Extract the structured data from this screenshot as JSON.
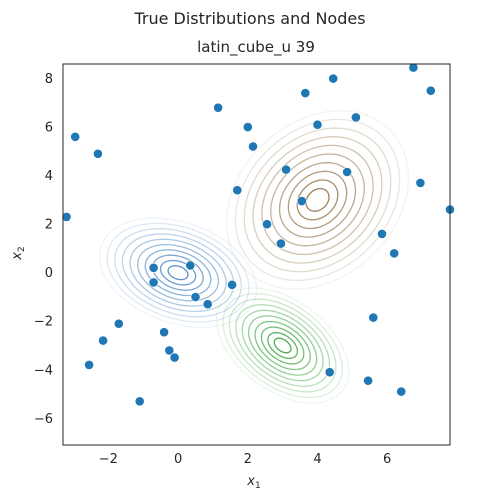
{
  "figure": {
    "suptitle": "True Distributions  and Nodes"
  },
  "chart_data": {
    "type": "scatter",
    "title": "latin_cube_u 39",
    "xlabel": "x",
    "xlabel_sub": "1",
    "ylabel": "x",
    "ylabel_sub": "2",
    "xlim": [
      -3.3,
      7.8
    ],
    "ylim": [
      -7.1,
      8.6
    ],
    "xticks": [
      -2,
      0,
      2,
      4,
      6
    ],
    "yticks": [
      -6,
      -4,
      -2,
      0,
      2,
      4,
      6,
      8
    ],
    "grid": false,
    "point_color": "#1f77b4",
    "nodes": [
      [
        -3.2,
        2.3
      ],
      [
        -2.95,
        5.6
      ],
      [
        -2.55,
        -3.8
      ],
      [
        -2.3,
        4.9
      ],
      [
        -2.15,
        -2.8
      ],
      [
        -1.7,
        -2.1
      ],
      [
        -1.1,
        -5.3
      ],
      [
        -0.7,
        0.2
      ],
      [
        -0.7,
        -0.4
      ],
      [
        -0.4,
        -2.45
      ],
      [
        -0.25,
        -3.2
      ],
      [
        -0.1,
        -3.5
      ],
      [
        0.35,
        0.3
      ],
      [
        0.5,
        -1.0
      ],
      [
        0.85,
        -1.3
      ],
      [
        1.15,
        6.8
      ],
      [
        1.55,
        -0.5
      ],
      [
        1.7,
        3.4
      ],
      [
        2.0,
        6.0
      ],
      [
        2.15,
        5.2
      ],
      [
        2.55,
        2.0
      ],
      [
        2.95,
        1.2
      ],
      [
        3.1,
        4.25
      ],
      [
        3.55,
        2.95
      ],
      [
        3.65,
        7.4
      ],
      [
        4.0,
        6.1
      ],
      [
        4.45,
        8.0
      ],
      [
        4.35,
        -4.1
      ],
      [
        4.85,
        4.15
      ],
      [
        5.1,
        6.4
      ],
      [
        5.45,
        -4.45
      ],
      [
        5.6,
        -1.85
      ],
      [
        5.85,
        1.6
      ],
      [
        6.2,
        0.8
      ],
      [
        6.4,
        -4.9
      ],
      [
        6.75,
        8.45
      ],
      [
        6.95,
        3.7
      ],
      [
        7.25,
        7.5
      ],
      [
        7.8,
        2.6
      ]
    ],
    "distributions": [
      {
        "mean": [
          0.0,
          0.0
        ],
        "sx": 0.95,
        "sy": 0.95,
        "rho": -0.3,
        "color": "#3f7fbf"
      },
      {
        "mean": [
          3.0,
          -3.0
        ],
        "sx": 0.8,
        "sy": 1.0,
        "rho": -0.45,
        "color": "#2ca02c"
      },
      {
        "mean": [
          4.0,
          3.0
        ],
        "sx": 1.1,
        "sy": 1.55,
        "rho": 0.25,
        "color": "#8c6d3f"
      }
    ]
  }
}
